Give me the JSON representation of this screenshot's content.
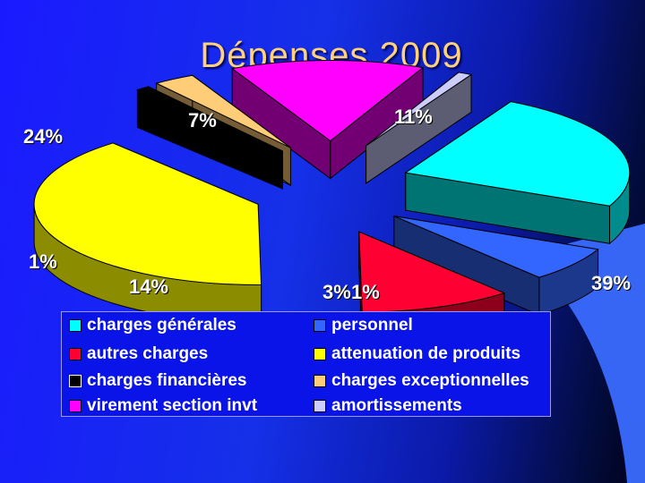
{
  "chart_data": {
    "type": "pie",
    "title": "Dépenses 2009",
    "slices": [
      {
        "name": "charges générales",
        "value": 24,
        "label": "24%",
        "color": "#00ffff"
      },
      {
        "name": "personnel",
        "value": 7,
        "label": "7%",
        "color": "#3366ff"
      },
      {
        "name": "autres charges",
        "value": 11,
        "label": "11%",
        "color": "#ff0033"
      },
      {
        "name": "attenuation de produits",
        "value": 39,
        "label": "39%",
        "color": "#ffff00"
      },
      {
        "name": "charges financières",
        "value": 1,
        "label": "1%",
        "color": "#000000"
      },
      {
        "name": "charges exceptionnelles",
        "value": 3,
        "label": "3%",
        "color": "#ffcc77"
      },
      {
        "name": "virement section invt",
        "value": 14,
        "label": "14%",
        "color": "#ff00ff"
      },
      {
        "name": "amortissements",
        "value": 1,
        "label": "1%",
        "color": "#ccccff"
      }
    ],
    "legend_position": "bottom"
  }
}
